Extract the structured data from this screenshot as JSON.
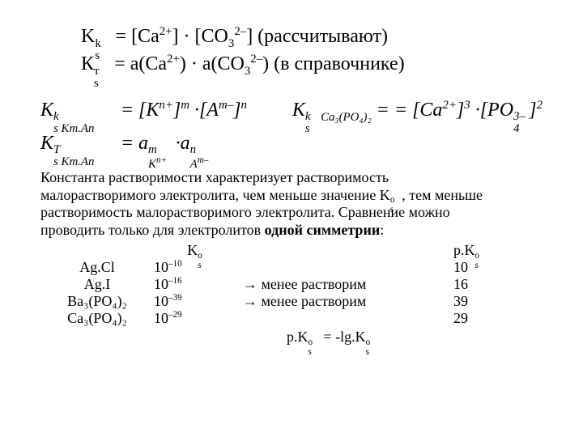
{
  "top": {
    "line1_left": "K",
    "line1_sub": "s",
    "line1_sup": "k",
    "line1_rest_a": "  = [Ca",
    "line1_rest_b": "] · [CO",
    "line1_tail": "] (рассчитывают)",
    "line2_left": "К",
    "line2_sub": "s",
    "line2_sup": "т",
    "line2_rest_a": "  = a(Ca",
    "line2_rest_b": ") · a(CO",
    "line2_tail": ") (в справочнике)",
    "ca_charge": "2+",
    "co3_sub": "3",
    "co3_charge": "2–"
  },
  "mid": {
    "k_left_a": "K",
    "k_left_sub1": "s Km.An",
    "k_left_sup1": "k",
    "eq": " = ",
    "k_left_b1": "[K",
    "k_left_b1_sup": "n+",
    "k_left_b1_close": "]",
    "k_left_m": "m",
    "k_left_c1": "·[A",
    "k_left_c1_sup": "m–",
    "k_left_c1_close": "]",
    "k_left_n": "n",
    "k_right_a": "K",
    "k_right_sub": "s",
    "k_right_sup": "k",
    "k_right_name_sub": "Ca₃(PO₄)₂",
    "k_right_b": " = [Ca",
    "k_right_b_sup": "2+",
    "k_right_b_close": "]",
    "k_right_b_pow": "3",
    "k_right_c": "·[PO",
    "k_right_c_sub": "4",
    "k_right_c_sup": "3–",
    "k_right_c_close": "]",
    "k_right_c_pow": "2",
    "t_left_a": "K",
    "t_left_sub1": "s Km.An",
    "t_left_sup1": "T",
    "t_left_b1": "a",
    "t_left_b1_sup": "m",
    "t_left_b1_sub": "K",
    "t_left_b1_subexp": "n+",
    "t_left_c1": "·a",
    "t_left_c1_sup": "n",
    "t_left_c1_sub": "A",
    "t_left_c1_subexp": "m–"
  },
  "para": {
    "l1": "Константа растворимости характеризует растворимость",
    "l2a": "малорастворимого электролита, чем меньше значение K",
    "l2b": ", тем меньше",
    "l3": "растворимость малорастворимого электролита. Сравнение можно",
    "l4a": "проводить только для электролитов ",
    "l4b": "одной симметрии",
    "l4c": ":",
    "ks_o_sub": "s",
    "ks_o_sup": "o"
  },
  "table": {
    "hdr_ks": "K",
    "hdr_ks_sub": "s",
    "hdr_ks_sup": "o",
    "hdr_pks": "p.K",
    "hdr_pks_sub": "s",
    "hdr_pks_sup": "o",
    "rows": [
      {
        "name": "Ag.Cl",
        "kso": "10",
        "kso_exp": "–10",
        "note": "",
        "pks": "10"
      },
      {
        "name": "Ag.I",
        "kso": "10",
        "kso_exp": "–16",
        "note": "  менее растворим",
        "pks": "16"
      },
      {
        "name": "Ba₃(PO₄)₂",
        "kso": "10",
        "kso_exp": "–39",
        "note": "  менее растворим",
        "pks": "39"
      },
      {
        "name": "Ca₃(PO₄)₂",
        "kso": "10",
        "kso_exp": "–29",
        "note": "",
        "pks": "29"
      }
    ],
    "arrow": "→"
  },
  "footer": {
    "a": "p.K",
    "sub": "s",
    "sup": "o",
    "mid": " = -lg.K",
    "sub2": "s",
    "sup2": "o"
  }
}
